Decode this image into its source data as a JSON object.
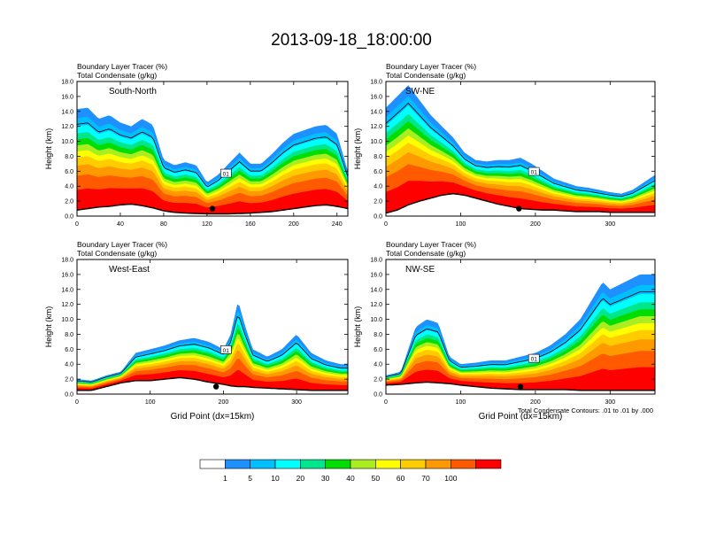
{
  "figure": {
    "title": "2013-09-18_18:00:00",
    "colorbar": {
      "labels": [
        "1",
        "5",
        "10",
        "20",
        "30",
        "40",
        "50",
        "60",
        "70",
        "100"
      ],
      "colors": [
        "#ffffff",
        "#1e90ff",
        "#00bfff",
        "#00ffff",
        "#00e68c",
        "#00dd00",
        "#aaee22",
        "#ffff00",
        "#ffcc00",
        "#ff9900",
        "#ff5a00",
        "#ff0000"
      ]
    },
    "footnote": "Total Condensate Contours: .01 to .01 by .000"
  },
  "chart_data": [
    {
      "type": "heatmap",
      "title_line1": "Boundary Layer Tracer   (%)",
      "title_line2": "Total Condensate   (g/kg)",
      "label": "South-North",
      "xlabel": "",
      "ylabel": "Height (km)",
      "xlim": [
        0,
        250
      ],
      "ylim": [
        0,
        18
      ],
      "xticks": [
        "0",
        "40",
        "80",
        "120",
        "160",
        "200",
        "240"
      ],
      "yticks": [
        "0.0",
        "2.0",
        "4.0",
        "6.0",
        "8.0",
        "10.0",
        "12.0",
        "14.0",
        "16.0",
        "18.0"
      ],
      "contour_label": "01",
      "marker_x": 125,
      "x": [
        0,
        10,
        20,
        30,
        40,
        50,
        60,
        70,
        80,
        90,
        100,
        110,
        120,
        130,
        140,
        150,
        160,
        170,
        180,
        190,
        200,
        210,
        220,
        230,
        240,
        250
      ],
      "top": [
        14.3,
        14.5,
        13,
        13.5,
        12.5,
        12,
        13,
        12.2,
        7.5,
        6.8,
        7.2,
        6.8,
        4.5,
        5.5,
        7,
        8.5,
        7,
        7,
        8.3,
        9.8,
        11,
        11.5,
        12,
        12.2,
        11,
        6
      ],
      "terrain": [
        0.8,
        1.0,
        1.2,
        1.3,
        1.5,
        1.6,
        1.4,
        1.1,
        0.7,
        0.5,
        0.4,
        0.35,
        0.3,
        0.3,
        0.3,
        0.35,
        0.4,
        0.5,
        0.6,
        0.8,
        1.0,
        1.2,
        1.4,
        1.5,
        1.3,
        1.0
      ]
    },
    {
      "type": "heatmap",
      "title_line1": "Boundary Layer Tracer   (%)",
      "title_line2": "Total Condensate   (g/kg)",
      "label": "SW-NE",
      "xlabel": "",
      "ylabel": "Height (km)",
      "xlim": [
        0,
        360
      ],
      "ylim": [
        0,
        18
      ],
      "xticks": [
        "0",
        "100",
        "200",
        "300"
      ],
      "yticks": [
        "0.0",
        "2.0",
        "4.0",
        "6.0",
        "8.0",
        "10.0",
        "12.0",
        "14.0",
        "16.0",
        "18.0"
      ],
      "contour_label": "01",
      "marker_x": 178,
      "x": [
        0,
        15,
        30,
        45,
        60,
        75,
        90,
        105,
        120,
        135,
        150,
        165,
        180,
        195,
        210,
        225,
        240,
        255,
        270,
        285,
        300,
        315,
        330,
        345,
        360
      ],
      "top": [
        14.5,
        16,
        17.5,
        15.5,
        13.5,
        12,
        10.5,
        8.5,
        7.5,
        7.3,
        7.5,
        7.5,
        7.8,
        7,
        6,
        5,
        4.5,
        4,
        3.8,
        3.5,
        3.2,
        3,
        3.5,
        4.5,
        5.5
      ],
      "terrain": [
        0.4,
        0.8,
        1.5,
        2.0,
        2.4,
        2.8,
        3.0,
        2.8,
        2.4,
        2.0,
        1.6,
        1.3,
        1.0,
        0.9,
        0.8,
        0.8,
        0.7,
        0.6,
        0.6,
        0.6,
        0.5,
        0.5,
        0.5,
        0.5,
        0.5
      ]
    },
    {
      "type": "heatmap",
      "title_line1": "Boundary Layer Tracer   (%)",
      "title_line2": "Total Condensate   (g/kg)",
      "label": "West-East",
      "xlabel": "Grid Point (dx=15km)",
      "ylabel": "Height (km)",
      "xlim": [
        0,
        370
      ],
      "ylim": [
        0,
        18
      ],
      "xticks": [
        "0",
        "100",
        "200",
        "300"
      ],
      "yticks": [
        "0.0",
        "2.0",
        "4.0",
        "6.0",
        "8.0",
        "10.0",
        "12.0",
        "14.0",
        "16.0",
        "18.0"
      ],
      "contour_label": "01",
      "marker_x": 190,
      "x": [
        0,
        20,
        40,
        60,
        80,
        100,
        120,
        140,
        160,
        180,
        200,
        210,
        220,
        230,
        240,
        260,
        280,
        300,
        320,
        340,
        360,
        370
      ],
      "top": [
        2,
        1.8,
        2.5,
        3,
        5.5,
        6,
        6.5,
        7.2,
        7.5,
        7,
        6,
        8,
        12.5,
        9,
        6,
        5,
        6,
        8,
        5.5,
        4.5,
        4,
        4
      ],
      "terrain": [
        0.5,
        0.5,
        1.0,
        1.5,
        1.8,
        1.8,
        2.0,
        2.2,
        2.0,
        1.6,
        1.3,
        1.1,
        1.0,
        1.0,
        0.9,
        0.8,
        0.7,
        0.6,
        0.5,
        0.5,
        0.5,
        0.5
      ]
    },
    {
      "type": "heatmap",
      "title_line1": "Boundary Layer Tracer   (%)",
      "title_line2": "Total Condensate   (g/kg)",
      "label": "NW-SE",
      "xlabel": "Grid Point (dx=15km)",
      "ylabel": "Height (km)",
      "xlim": [
        0,
        360
      ],
      "ylim": [
        0,
        18
      ],
      "xticks": [
        "0",
        "100",
        "200",
        "300"
      ],
      "yticks": [
        "0.0",
        "2.0",
        "4.0",
        "6.0",
        "8.0",
        "10.0",
        "12.0",
        "14.0",
        "16.0",
        "18.0"
      ],
      "contour_label": "01",
      "marker_x": 180,
      "x": [
        0,
        20,
        40,
        55,
        70,
        85,
        100,
        120,
        140,
        160,
        180,
        200,
        220,
        240,
        260,
        275,
        290,
        300,
        320,
        340,
        360
      ],
      "top": [
        2.5,
        3,
        9,
        10,
        9.5,
        5,
        4,
        4.2,
        4.5,
        4.5,
        5,
        5.5,
        6.5,
        8,
        10,
        12.5,
        15,
        14,
        15,
        16,
        16
      ],
      "terrain": [
        1.2,
        1.3,
        1.5,
        1.6,
        1.5,
        1.4,
        1.2,
        1.0,
        0.8,
        0.7,
        0.6,
        0.6,
        0.6,
        0.6,
        0.5,
        0.5,
        0.5,
        0.5,
        0.5,
        0.5,
        0.5
      ]
    }
  ]
}
